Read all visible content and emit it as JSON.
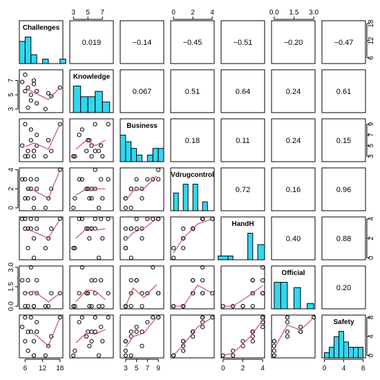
{
  "chart_data": {
    "type": "scatter",
    "title": "",
    "variables": [
      "Challenges",
      "Knowledge",
      "Business",
      "Vdrugcontrol",
      "HandH",
      "Official",
      "Safety"
    ],
    "axis_ticks": {
      "Challenges": [
        6,
        12,
        18
      ],
      "Knowledge": [
        3,
        5,
        7
      ],
      "Business": [
        3,
        5,
        7,
        9
      ],
      "Vdrugcontrol": [
        0,
        2,
        4
      ],
      "HandH": [
        0,
        2,
        4
      ],
      "Official": [
        0.0,
        1.5,
        3.0
      ],
      "Safety": [
        0,
        4,
        8
      ]
    },
    "tick_labels": {
      "Challenges": [
        "6",
        "12",
        "18"
      ],
      "Knowledge": [
        "3",
        "5",
        "7"
      ],
      "Business": [
        "3",
        "5",
        "7",
        "9"
      ],
      "Vdrugcontrol": [
        "0",
        "2",
        "4"
      ],
      "HandH": [
        "0",
        "2",
        "4"
      ],
      "Official": [
        "0.0",
        "1.5",
        "3.0"
      ],
      "Safety": [
        "0",
        "4",
        "8"
      ]
    },
    "ranges": {
      "Challenges": [
        4,
        19
      ],
      "Knowledge": [
        2.5,
        8.5
      ],
      "Business": [
        2,
        10
      ],
      "Vdrugcontrol": [
        -0.3,
        4.2
      ],
      "HandH": [
        -0.2,
        4.2
      ],
      "Official": [
        -0.2,
        3.1
      ],
      "Safety": [
        -0.5,
        8.5
      ]
    },
    "top_axis_vars": [
      1,
      3,
      5
    ],
    "bottom_axis_vars": [
      0,
      2,
      4,
      6
    ],
    "right_axis_vars": [
      0,
      2,
      4,
      6
    ],
    "left_axis_vars": [
      1,
      3,
      5
    ],
    "correlations": [
      [
        1,
        0,
        "0.019"
      ],
      [
        2,
        0,
        "−0.14"
      ],
      [
        3,
        0,
        "−0.45"
      ],
      [
        4,
        0,
        "−0.51"
      ],
      [
        5,
        0,
        "−0.20"
      ],
      [
        6,
        0,
        "−0.47"
      ],
      [
        2,
        1,
        "0.067"
      ],
      [
        3,
        1,
        "0.51"
      ],
      [
        4,
        1,
        "0.64"
      ],
      [
        5,
        1,
        "0.24"
      ],
      [
        6,
        1,
        "0.61"
      ],
      [
        3,
        2,
        "0.18"
      ],
      [
        4,
        2,
        "0.11"
      ],
      [
        5,
        2,
        "0.24"
      ],
      [
        6,
        2,
        "0.15"
      ],
      [
        4,
        3,
        "0.72"
      ],
      [
        5,
        3,
        "0.16"
      ],
      [
        6,
        3,
        "0.96"
      ],
      [
        5,
        4,
        "0.40"
      ],
      [
        6,
        4,
        "0.88"
      ],
      [
        6,
        5,
        "0.20"
      ]
    ],
    "histograms": {
      "Challenges": {
        "breaks": [
          4,
          6,
          8,
          10,
          12,
          14,
          16,
          18,
          20
        ],
        "counts": [
          5,
          6,
          2,
          0,
          1,
          0,
          0,
          1
        ]
      },
      "Knowledge": {
        "breaks": [
          3,
          4,
          5,
          6,
          7,
          8
        ],
        "counts": [
          5,
          3,
          3,
          4,
          2
        ]
      },
      "Business": {
        "breaks": [
          2,
          3,
          4,
          5,
          6,
          7,
          8,
          9,
          10
        ],
        "counts": [
          4,
          3,
          2,
          1,
          0,
          1,
          2,
          2
        ]
      },
      "Vdrugcontrol": {
        "breaks": [
          0,
          0.5,
          1,
          1.5,
          2,
          2.5,
          3,
          3.5,
          4
        ],
        "counts": [
          2,
          0,
          3,
          0,
          3,
          0,
          1,
          0
        ]
      },
      "HandH": {
        "breaks": [
          -0.5,
          0.5,
          1,
          1.5,
          2,
          2.5,
          3,
          3.5,
          4.2
        ],
        "counts": [
          1,
          1,
          0,
          0,
          0,
          7,
          0,
          4
        ]
      },
      "Official": {
        "breaks": [
          0,
          0.5,
          1,
          1.5,
          2,
          2.5,
          3
        ],
        "counts": [
          5,
          5,
          0,
          4,
          0,
          1
        ]
      },
      "Safety": {
        "breaks": [
          0,
          1,
          2,
          3,
          4,
          5,
          6,
          7,
          8
        ],
        "counts": [
          1,
          2,
          4,
          5,
          3,
          2,
          2,
          2
        ]
      }
    },
    "observations": {
      "Challenges": [
        5,
        6,
        6,
        7,
        7,
        8,
        9,
        8,
        10,
        9,
        10,
        13,
        18,
        15,
        14
      ],
      "Knowledge": [
        6.8,
        5.5,
        7.8,
        6.0,
        3.2,
        5.0,
        6.5,
        4.2,
        5.5,
        7.0,
        3.8,
        3.0,
        6.0,
        4.8,
        5.2
      ],
      "Business": [
        5,
        3,
        9,
        4,
        3,
        6,
        4,
        8,
        5,
        3,
        7,
        3,
        9,
        4,
        6
      ],
      "Vdrugcontrol": [
        3,
        1,
        3,
        2,
        1,
        2,
        0,
        3,
        2,
        1,
        3,
        0,
        4,
        2,
        1
      ],
      "HandH": [
        4,
        3,
        4,
        3,
        1,
        3,
        0,
        4,
        3,
        2,
        4,
        1,
        4,
        3,
        2
      ],
      "Official": [
        2,
        0,
        1,
        2,
        0,
        1,
        0,
        3,
        2,
        0,
        1,
        0,
        1,
        1,
        0
      ],
      "Safety": [
        6,
        3,
        8,
        5,
        1,
        5,
        0,
        8,
        5,
        3,
        7,
        0,
        8,
        4,
        2
      ]
    },
    "colors": {
      "histogram": "#33D6F0",
      "smoother": "#C8505A",
      "points": "#000000",
      "frame": "#000000"
    }
  }
}
